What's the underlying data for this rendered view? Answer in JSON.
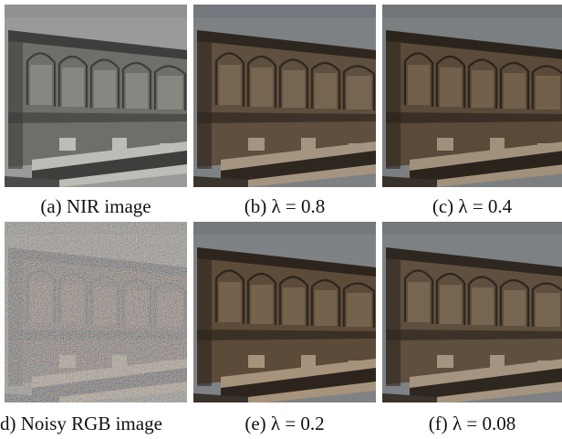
{
  "figure": {
    "panels": [
      {
        "caption": "(a) NIR image"
      },
      {
        "caption": "(b) λ = 0.8"
      },
      {
        "caption": "(c) λ = 0.4"
      },
      {
        "caption": "d) Noisy RGB image"
      },
      {
        "caption": "(e) λ = 0.2"
      },
      {
        "caption": "(f) λ = 0.08"
      }
    ]
  }
}
